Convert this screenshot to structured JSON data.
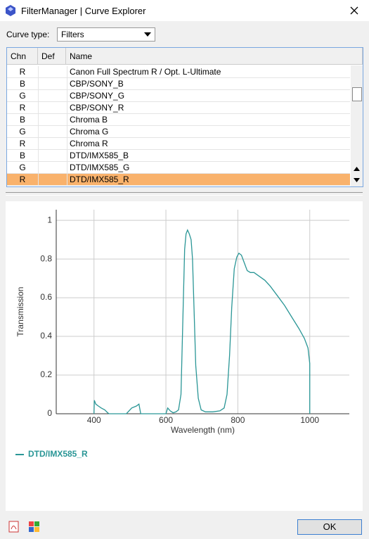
{
  "window": {
    "title": "FilterManager | Curve Explorer"
  },
  "curve_type": {
    "label": "Curve type:",
    "value": "Filters"
  },
  "table": {
    "columns": [
      "Chn",
      "Def",
      "Name"
    ],
    "rows": [
      {
        "chn": "R",
        "name": "Canon Full Spectrum R / Opt. L-Ultimate"
      },
      {
        "chn": "B",
        "name": "CBP/SONY_B"
      },
      {
        "chn": "G",
        "name": "CBP/SONY_G"
      },
      {
        "chn": "R",
        "name": "CBP/SONY_R"
      },
      {
        "chn": "B",
        "name": "Chroma B"
      },
      {
        "chn": "G",
        "name": "Chroma G"
      },
      {
        "chn": "R",
        "name": "Chroma R"
      },
      {
        "chn": "B",
        "name": "DTD/IMX585_B"
      },
      {
        "chn": "G",
        "name": "DTD/IMX585_G"
      },
      {
        "chn": "R",
        "name": "DTD/IMX585_R"
      }
    ],
    "selected": 9
  },
  "chart_data": {
    "type": "line",
    "x_label": "Wavelength (nm)",
    "y_label": "Transmission",
    "xlim": [
      295,
      1110
    ],
    "ylim": [
      0,
      1.055
    ],
    "xticks": [
      400,
      600,
      800,
      1000
    ],
    "yticks": [
      0,
      0.2,
      0.4,
      0.6,
      0.8,
      1
    ],
    "grid": true,
    "series": [
      {
        "name": "DTD/IMX585_R",
        "color": "#2a9696",
        "x": [
          400,
          401,
          405,
          412,
          420,
          430,
          438,
          442,
          490,
          505,
          518,
          525,
          530,
          600,
          605,
          612,
          620,
          628,
          635,
          642,
          648,
          652,
          656,
          660,
          665,
          670,
          674,
          678,
          683,
          690,
          698,
          710,
          730,
          750,
          762,
          770,
          777,
          783,
          790,
          797,
          803,
          810,
          818,
          826,
          835,
          845,
          860,
          875,
          890,
          910,
          930,
          950,
          970,
          985,
          995,
          1000,
          1000
        ],
        "y": [
          0,
          0.07,
          0.05,
          0.04,
          0.03,
          0.02,
          0.005,
          0,
          0,
          0.03,
          0.04,
          0.05,
          0,
          0,
          0.03,
          0.015,
          0.005,
          0.01,
          0.02,
          0.1,
          0.55,
          0.85,
          0.93,
          0.95,
          0.93,
          0.9,
          0.8,
          0.55,
          0.25,
          0.08,
          0.02,
          0.01,
          0.01,
          0.015,
          0.03,
          0.1,
          0.3,
          0.55,
          0.75,
          0.81,
          0.83,
          0.82,
          0.78,
          0.74,
          0.73,
          0.73,
          0.71,
          0.69,
          0.66,
          0.61,
          0.56,
          0.5,
          0.44,
          0.39,
          0.34,
          0.26,
          0
        ]
      }
    ]
  },
  "buttons": {
    "ok": "OK"
  }
}
